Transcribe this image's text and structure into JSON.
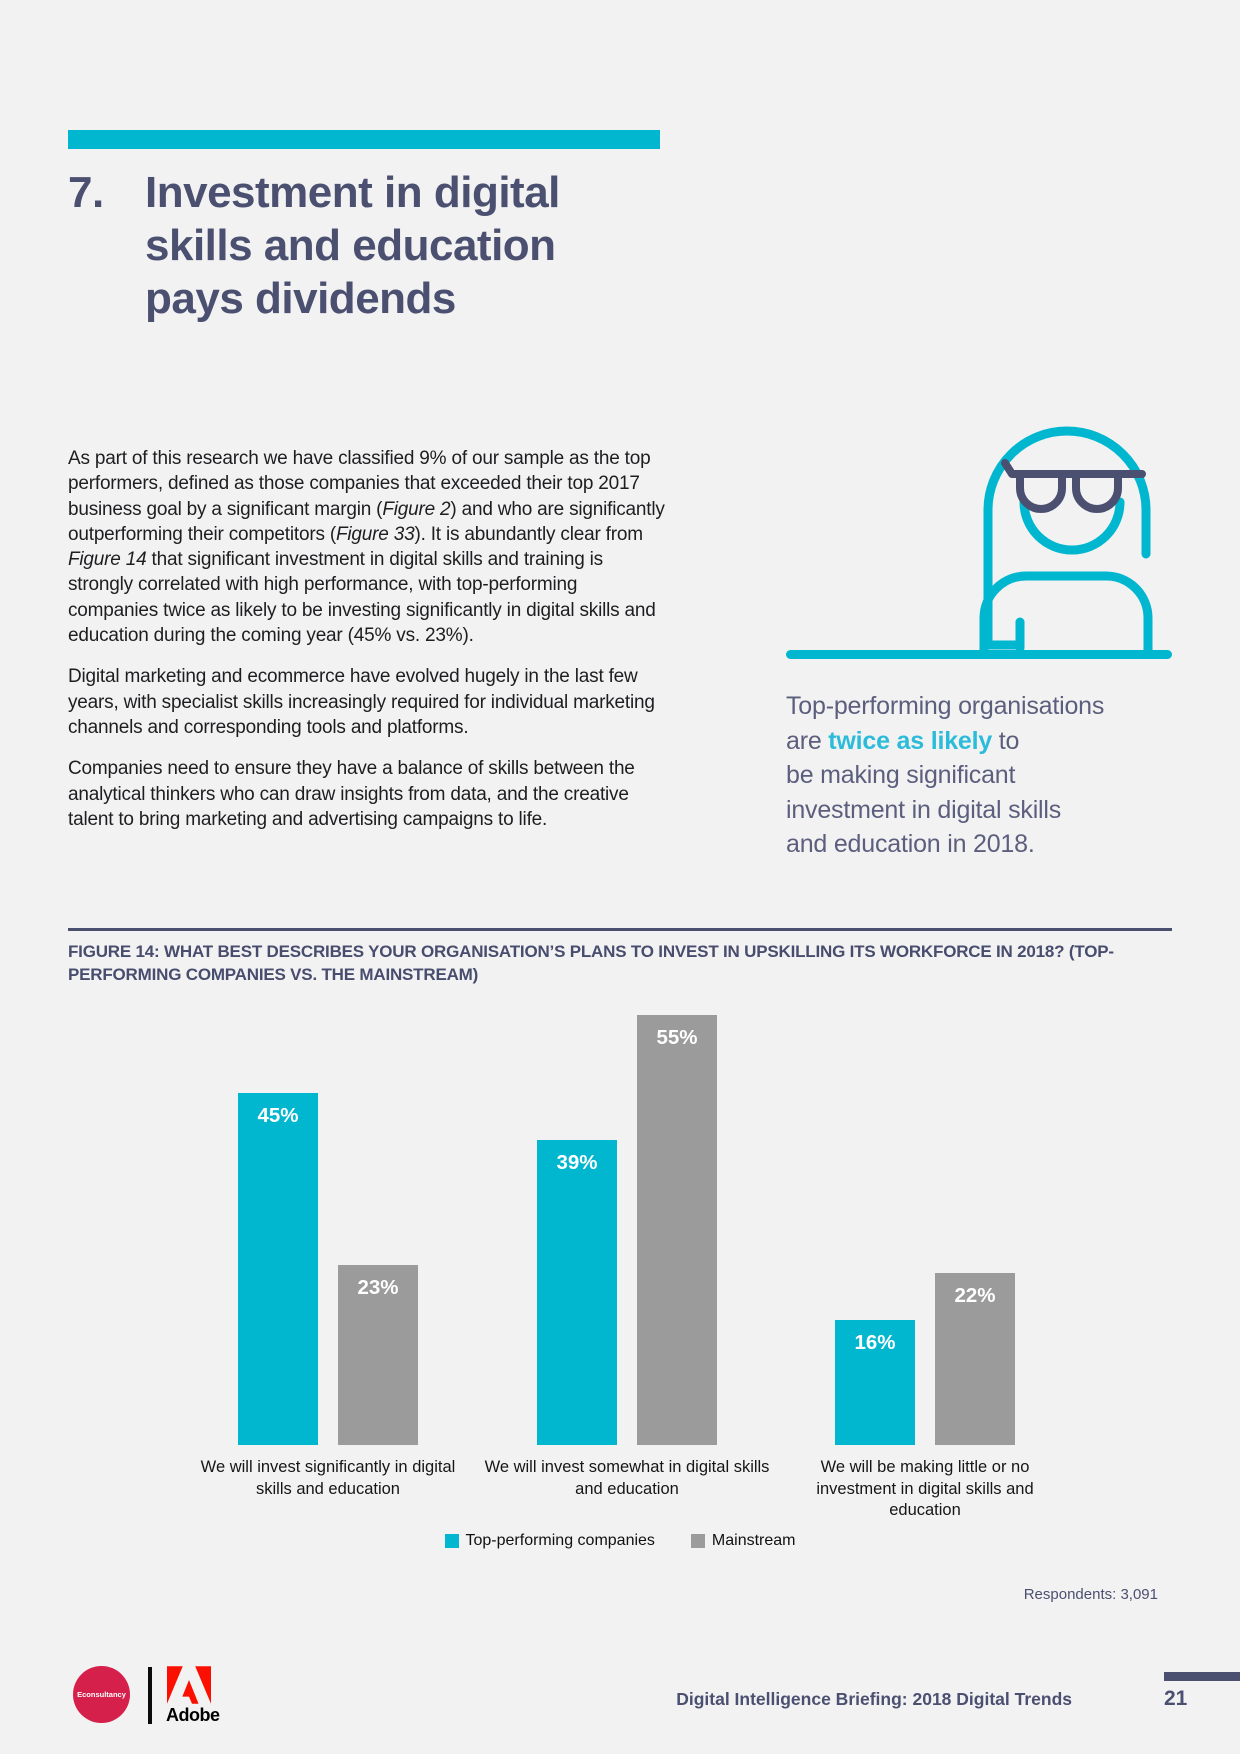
{
  "page": {
    "bg": "#f2f2f3",
    "accent": "#00b7cf",
    "slate": "#4b5071"
  },
  "header": {
    "section_number": "7.",
    "title_lines": [
      "Investment in digital",
      "skills and education",
      "pays dividends"
    ]
  },
  "body": {
    "p1": {
      "s0": "As part of this research we have classified 9% of our sample as the top performers, defined as those companies that exceeded their top 2017 business goal by a significant margin (",
      "i0": "Figure 2",
      "s1": ") and who are significantly outperforming their competitors (",
      "i1": "Figure 33",
      "s2": "). It is abundantly clear from ",
      "i2": "Figure 14",
      "s3": " that significant investment in digital skills and training is strongly correlated with high performance, with top-performing companies twice as likely to be investing significantly in digital skills and education during the coming year (45% vs. 23%)."
    },
    "p2": "Digital marketing and ecommerce have evolved hugely in the last few years, with specialist skills increasingly required for individual marketing channels and corresponding tools and platforms.",
    "p3": "Companies need to ensure they have a balance of skills between the analytical thinkers who can draw insights from data, and the creative talent to bring marketing and advertising campaigns to life."
  },
  "callout": {
    "highlight_color": "#2cbcda",
    "lines": [
      {
        "pre": "Top-performing organisations",
        "hl": "",
        "post": ""
      },
      {
        "pre": "are ",
        "hl": "twice as likely",
        "post": " to"
      },
      {
        "pre": "be making significant",
        "hl": "",
        "post": ""
      },
      {
        "pre": "investment in digital skills",
        "hl": "",
        "post": ""
      },
      {
        "pre": "and education in 2018.",
        "hl": "",
        "post": ""
      }
    ]
  },
  "figure": {
    "caption": "FIGURE 14: WHAT BEST DESCRIBES YOUR ORGANISATION’S PLANS TO INVEST IN UPSKILLING ITS WORKFORCE IN 2018? (TOP-PERFORMING COMPANIES VS. THE MAINSTREAM)",
    "respondents": "Respondents: 3,091"
  },
  "chart_data": {
    "type": "bar",
    "title": "What best describes your organisation’s plans to invest in upskilling its workforce in 2018? (Top-performing companies vs. the mainstream)",
    "categories": [
      "We will invest significantly in digital skills and education",
      "We will invest somewhat in digital skills and education",
      "We will be making little or no investment in digital skills and education"
    ],
    "category_lines": [
      [
        "We will invest significantly in digital",
        "skills and education"
      ],
      [
        "We will invest somewhat in digital skills",
        "and education"
      ],
      [
        "We will be making little or no",
        "investment in digital skills and",
        "education"
      ]
    ],
    "series": [
      {
        "name": "Top-performing companies",
        "color": "#00b7cf",
        "values": [
          45,
          39,
          16
        ]
      },
      {
        "name": "Mainstream",
        "color": "#9b9b9b",
        "values": [
          23,
          55,
          22
        ]
      }
    ],
    "value_suffix": "%",
    "ylim": [
      0,
      57.5
    ],
    "grid": false,
    "axes_shown": false,
    "legend_position": "bottom",
    "data_labels": "inside-top white"
  },
  "footer": {
    "econsultancy_label": "Econsultancy",
    "adobe_label": "Adobe",
    "report_title": "Digital Intelligence Briefing: 2018 Digital Trends",
    "page_number": "21",
    "econsultancy_color": "#d5204b",
    "adobe_color": "#fa0f00"
  }
}
